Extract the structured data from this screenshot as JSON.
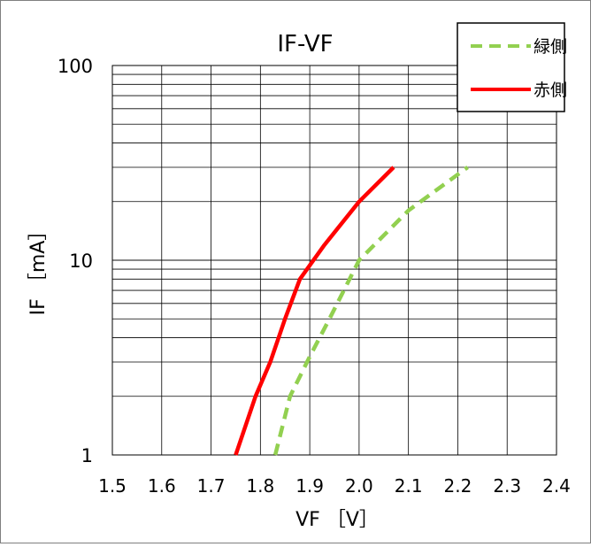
{
  "chart_data": {
    "type": "line",
    "title": "IF-VF",
    "xlabel": "VF ［V］",
    "ylabel": "IF ［mA］",
    "xscale": "linear",
    "yscale": "log",
    "xlim": [
      1.5,
      2.4
    ],
    "ylim": [
      1,
      100
    ],
    "xticks": [
      "1.5",
      "1.6",
      "1.7",
      "1.8",
      "1.9",
      "2.0",
      "2.1",
      "2.2",
      "2.3",
      "2.4"
    ],
    "yticks": [
      "1",
      "10",
      "100"
    ],
    "grid": true,
    "legend_position": "top-right",
    "series": [
      {
        "name": "緑側",
        "color": "#92d050",
        "dash": "dashed",
        "x": [
          1.83,
          1.86,
          1.9,
          1.94,
          2.0,
          2.1,
          2.22
        ],
        "y": [
          1,
          2,
          3.2,
          5,
          10,
          18,
          30
        ]
      },
      {
        "name": "赤側",
        "color": "#ff0000",
        "dash": "solid",
        "x": [
          1.75,
          1.79,
          1.82,
          1.85,
          1.88,
          1.93,
          2.0,
          2.07
        ],
        "y": [
          1,
          2,
          3,
          5,
          8,
          12,
          20,
          30
        ]
      }
    ]
  }
}
